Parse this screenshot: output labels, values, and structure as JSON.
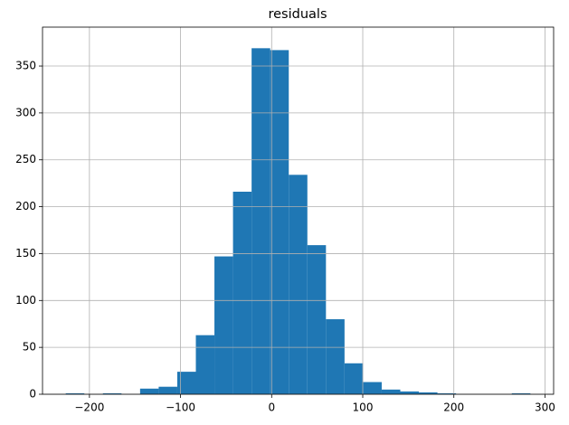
{
  "chart_data": {
    "type": "histogram",
    "title": "residuals",
    "bins": [
      -226,
      -205.6,
      -185.2,
      -164.8,
      -144.4,
      -124,
      -103.6,
      -83.2,
      -62.8,
      -42.4,
      -22,
      -1.6,
      18.8,
      39.2,
      59.6,
      80,
      100.4,
      120.8,
      141.2,
      161.6,
      182,
      202.4,
      222.8,
      243.2,
      263.6,
      284
    ],
    "values": [
      1,
      0,
      1,
      0,
      6,
      8,
      24,
      63,
      147,
      216,
      369,
      367,
      234,
      159,
      80,
      33,
      13,
      5,
      3,
      2,
      1,
      0,
      0,
      0,
      1
    ],
    "color": "#1f77b4",
    "xlim": [
      -251.5,
      309.5
    ],
    "xticks": [
      {
        "value": -200,
        "label": "−200"
      },
      {
        "value": -100,
        "label": "−100"
      },
      0,
      100,
      200,
      300
    ],
    "ylim": [
      0,
      391.5
    ],
    "yticks": [
      0,
      50,
      100,
      150,
      200,
      250,
      300,
      350
    ],
    "grid": true
  }
}
